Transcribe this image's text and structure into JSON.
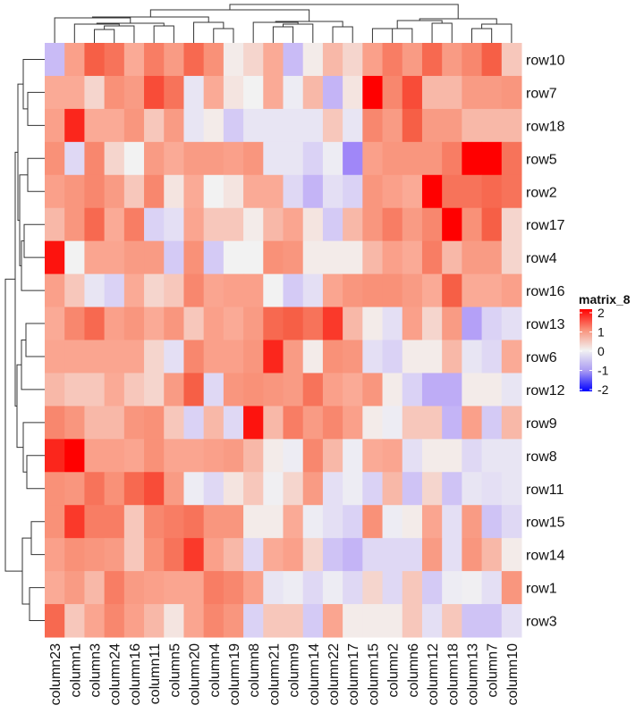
{
  "chart_data": {
    "type": "heatmap",
    "columns": [
      "column23",
      "column1",
      "column3",
      "column24",
      "column16",
      "column11",
      "column5",
      "column20",
      "column4",
      "column19",
      "column8",
      "column21",
      "column9",
      "column14",
      "column22",
      "column17",
      "column15",
      "column2",
      "column6",
      "column12",
      "column18",
      "column13",
      "column7",
      "column10"
    ],
    "rows": [
      "row10",
      "row7",
      "row18",
      "row5",
      "row2",
      "row17",
      "row4",
      "row16",
      "row13",
      "row6",
      "row12",
      "row9",
      "row8",
      "row11",
      "row15",
      "row14",
      "row1",
      "row3"
    ],
    "values": [
      [
        -0.8,
        0.7,
        1.5,
        1.3,
        0.5,
        1.2,
        0.8,
        1.4,
        1.0,
        0.05,
        0.2,
        0.5,
        -0.8,
        0.05,
        0.4,
        0.2,
        0.7,
        1.2,
        0.8,
        1.4,
        0.8,
        1.1,
        1.5,
        0.3
      ],
      [
        0.5,
        0.5,
        0.2,
        1.0,
        0.8,
        1.6,
        1.3,
        -0.2,
        0.5,
        0.1,
        0.0,
        0.5,
        -0.1,
        0.4,
        -0.9,
        0.1,
        2.2,
        1.1,
        1.6,
        0.4,
        0.4,
        0.8,
        0.8,
        0.9
      ],
      [
        0.7,
        1.8,
        0.5,
        0.5,
        0.9,
        0.3,
        0.8,
        -0.2,
        0.05,
        -0.6,
        -0.2,
        -0.2,
        -0.2,
        -0.2,
        0.3,
        -0.2,
        1.1,
        0.8,
        1.5,
        0.8,
        0.8,
        0.4,
        0.4,
        0.4
      ],
      [
        1.0,
        -0.4,
        1.1,
        0.2,
        0.0,
        0.8,
        0.5,
        0.8,
        0.8,
        0.7,
        0.9,
        -0.2,
        -0.2,
        -0.5,
        -0.1,
        -1.3,
        0.7,
        0.9,
        0.9,
        0.9,
        1.2,
        2.1,
        2.3,
        1.3
      ],
      [
        0.7,
        0.9,
        1.1,
        0.8,
        0.3,
        1.1,
        0.1,
        0.5,
        0.0,
        0.1,
        0.5,
        0.5,
        -0.4,
        -0.9,
        -0.3,
        -0.5,
        0.9,
        0.7,
        0.5,
        2.2,
        1.3,
        1.3,
        1.4,
        1.3
      ],
      [
        0.4,
        0.9,
        1.4,
        0.5,
        1.2,
        -0.5,
        -0.3,
        0.6,
        0.3,
        0.3,
        0.05,
        0.4,
        0.6,
        0.1,
        -0.6,
        0.4,
        0.9,
        1.2,
        0.8,
        1.1,
        2.3,
        1.0,
        1.5,
        0.2
      ],
      [
        1.9,
        0.0,
        0.6,
        0.6,
        0.8,
        0.8,
        -0.6,
        1.0,
        -0.6,
        0.0,
        0.0,
        1.0,
        0.9,
        0.05,
        0.05,
        0.05,
        0.4,
        0.7,
        0.5,
        1.2,
        0.4,
        0.8,
        0.8,
        0.2
      ],
      [
        0.7,
        0.3,
        -0.2,
        -0.5,
        0.5,
        0.2,
        0.3,
        1.1,
        0.6,
        0.7,
        0.7,
        0.0,
        -0.6,
        -0.3,
        0.6,
        0.9,
        1.0,
        1.0,
        0.8,
        0.5,
        1.5,
        0.5,
        0.5,
        0.7
      ],
      [
        0.5,
        1.1,
        1.4,
        0.7,
        0.9,
        0.5,
        0.9,
        0.3,
        0.7,
        0.5,
        0.8,
        1.4,
        1.5,
        1.3,
        1.7,
        0.4,
        0.05,
        -0.3,
        0.7,
        0.2,
        0.8,
        -1.1,
        -0.5,
        -0.3
      ],
      [
        0.6,
        0.6,
        0.6,
        0.6,
        0.6,
        0.2,
        -0.3,
        1.1,
        0.7,
        0.7,
        0.9,
        1.8,
        0.8,
        0.05,
        1.0,
        0.9,
        -0.3,
        -0.5,
        0.05,
        0.05,
        0.4,
        -0.2,
        -0.4,
        0.5
      ],
      [
        0.4,
        0.3,
        0.3,
        0.5,
        0.3,
        0.2,
        0.8,
        1.5,
        -0.4,
        0.9,
        1.0,
        0.9,
        0.8,
        1.3,
        0.7,
        0.5,
        0.9,
        0.05,
        -0.5,
        -1.0,
        -1.0,
        0.05,
        0.05,
        -0.2
      ],
      [
        1.1,
        0.9,
        0.4,
        0.4,
        0.9,
        1.0,
        0.3,
        -0.5,
        0.4,
        -0.4,
        1.9,
        0.4,
        1.2,
        0.8,
        1.1,
        0.7,
        0.05,
        -0.1,
        0.3,
        0.3,
        -0.9,
        0.7,
        -0.6,
        0.4
      ],
      [
        1.8,
        2.2,
        0.7,
        0.7,
        0.6,
        1.0,
        0.6,
        0.6,
        0.7,
        0.8,
        0.4,
        0.05,
        -0.1,
        1.1,
        0.4,
        -0.1,
        0.5,
        0.6,
        -0.3,
        0.05,
        0.05,
        -0.4,
        -0.2,
        -0.2
      ],
      [
        1.0,
        0.9,
        1.3,
        1.0,
        1.4,
        1.6,
        0.8,
        -0.1,
        -0.4,
        0.1,
        0.3,
        -0.05,
        0.2,
        0.8,
        -0.3,
        -0.1,
        -0.5,
        0.4,
        -0.7,
        0.2,
        -0.7,
        -0.2,
        -0.3,
        -0.2
      ],
      [
        1.0,
        1.7,
        1.2,
        1.2,
        0.3,
        1.1,
        1.2,
        1.3,
        0.9,
        0.9,
        0.05,
        0.05,
        0.5,
        -0.1,
        -0.3,
        -0.5,
        1.0,
        -0.1,
        0.05,
        0.6,
        -0.3,
        0.8,
        -0.7,
        -0.4
      ],
      [
        0.7,
        1.0,
        0.9,
        0.8,
        0.3,
        1.0,
        1.3,
        1.7,
        0.7,
        0.4,
        -0.4,
        0.5,
        0.7,
        0.2,
        -0.7,
        -0.9,
        -0.4,
        -0.4,
        -0.4,
        0.8,
        -0.3,
        0.9,
        0.4,
        0.05
      ],
      [
        0.5,
        0.8,
        0.4,
        1.2,
        0.8,
        0.7,
        0.6,
        0.6,
        1.2,
        1.1,
        0.7,
        -0.2,
        -0.1,
        -0.4,
        -0.1,
        -0.4,
        0.2,
        -0.4,
        0.3,
        -0.6,
        -0.1,
        -0.05,
        -0.3,
        0.9
      ],
      [
        1.4,
        0.3,
        0.6,
        1.1,
        0.7,
        0.4,
        0.1,
        0.6,
        1.1,
        0.9,
        -0.5,
        0.3,
        0.3,
        -0.6,
        0.6,
        0.05,
        0.05,
        0.05,
        0.3,
        -0.3,
        0.3,
        -0.7,
        -0.7,
        -0.3
      ]
    ],
    "color_scale": {
      "min": -2,
      "mid": 0,
      "max": 2,
      "low_color": "#0000FF",
      "mid_color": "#FFFFFF",
      "high_color": "#FF0000"
    },
    "legend": {
      "title": "matrix_8",
      "ticks": [
        "2",
        "1",
        "0",
        "-1",
        "-2"
      ],
      "placement": "right"
    },
    "row_dendrogram": true,
    "column_dendrogram": true
  }
}
